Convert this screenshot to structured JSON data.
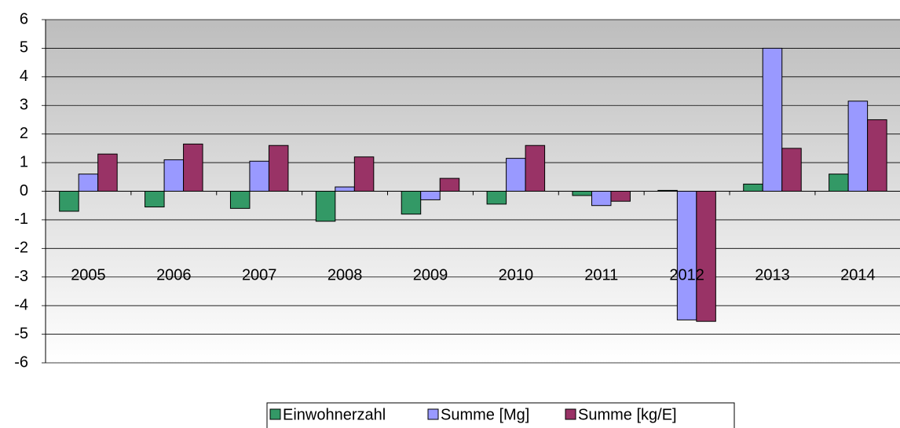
{
  "chart_data": {
    "type": "bar",
    "categories": [
      "2005",
      "2006",
      "2007",
      "2008",
      "2009",
      "2010",
      "2011",
      "2012",
      "2013",
      "2014"
    ],
    "series": [
      {
        "name": "Einwohnerzahl",
        "color": "#339966",
        "values": [
          -0.7,
          -0.55,
          -0.6,
          -1.05,
          -0.8,
          -0.45,
          -0.15,
          0.03,
          0.25,
          0.6
        ]
      },
      {
        "name": "Summe [Mg]",
        "color": "#9999ff",
        "values": [
          0.6,
          1.1,
          1.05,
          0.15,
          -0.3,
          1.15,
          -0.5,
          -4.5,
          5.0,
          3.15
        ]
      },
      {
        "name": "Summe [kg/E]",
        "color": "#993366",
        "values": [
          1.3,
          1.65,
          1.6,
          1.2,
          0.45,
          1.6,
          -0.35,
          -4.55,
          1.5,
          2.5
        ]
      }
    ],
    "ylim": [
      -6,
      6
    ],
    "yticks": [
      -6,
      -5,
      -4,
      -3,
      -2,
      -1,
      0,
      1,
      2,
      3,
      4,
      5,
      6
    ],
    "grid": true
  }
}
